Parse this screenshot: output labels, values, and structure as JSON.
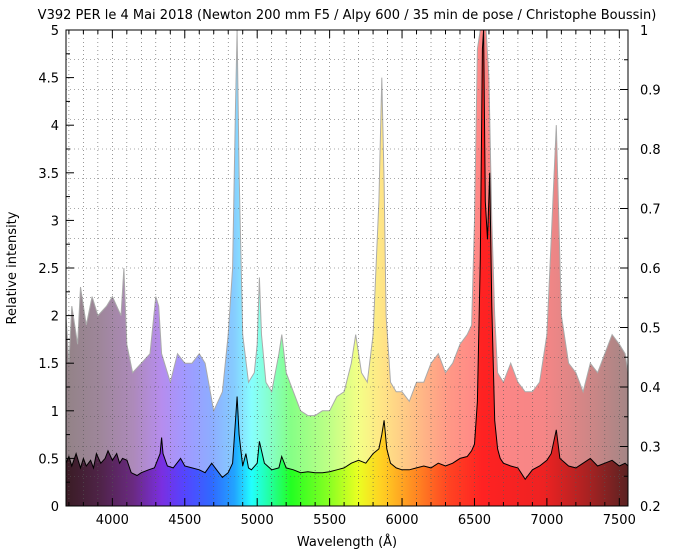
{
  "chart_data": {
    "type": "area",
    "title": "V392 PER le 4 Mai 2018 (Newton 200 mm F5 / Alpy 600 / 35 min de pose / Christophe Boussin)",
    "xlabel": "Wavelength (Å)",
    "ylabel": "Relative intensity",
    "xlim": [
      3680,
      7560
    ],
    "ylim": [
      0,
      5
    ],
    "y2lim": [
      0.2,
      1
    ],
    "grid": true,
    "x_ticks": [
      4000,
      4500,
      5000,
      5500,
      6000,
      6500,
      7000,
      7500
    ],
    "y_ticks": [
      0,
      0.5,
      1,
      1.5,
      2,
      2.5,
      3,
      3.5,
      4,
      4.5,
      5
    ],
    "y2_ticks": [
      0.2,
      0.3,
      0.4,
      0.5,
      0.6,
      0.7,
      0.8,
      0.9,
      1
    ],
    "x_tick_labels": [
      "4000",
      "4500",
      "5000",
      "5500",
      "6000",
      "6500",
      "7000",
      "7500"
    ],
    "y_tick_labels": [
      "0",
      "0.5",
      "1",
      "1.5",
      "2",
      "2.5",
      "3",
      "3.5",
      "4",
      "4.5",
      "5"
    ],
    "y2_tick_labels": [
      "0.2",
      "0.3",
      "0.4",
      "0.5",
      "0.6",
      "0.7",
      "0.8",
      "0.9",
      "1"
    ],
    "series": [
      {
        "role": "envelope",
        "x": [
          3680,
          3700,
          3720,
          3760,
          3780,
          3820,
          3860,
          3900,
          3960,
          4000,
          4060,
          4080,
          4100,
          4140,
          4200,
          4260,
          4300,
          4320,
          4340,
          4360,
          4400,
          4450,
          4500,
          4550,
          4600,
          4640,
          4700,
          4760,
          4800,
          4830,
          4850,
          4861,
          4875,
          4900,
          4940,
          4980,
          5000,
          5015,
          5030,
          5060,
          5100,
          5150,
          5170,
          5200,
          5250,
          5300,
          5350,
          5400,
          5450,
          5500,
          5550,
          5600,
          5650,
          5680,
          5720,
          5760,
          5800,
          5840,
          5860,
          5876,
          5890,
          5920,
          5960,
          6000,
          6050,
          6100,
          6150,
          6200,
          6250,
          6300,
          6350,
          6400,
          6450,
          6480,
          6500,
          6520,
          6540,
          6563,
          6580,
          6600,
          6620,
          6640,
          6660,
          6700,
          6750,
          6800,
          6850,
          6900,
          6950,
          7000,
          7030,
          7065,
          7100,
          7150,
          7200,
          7250,
          7300,
          7350,
          7400,
          7450,
          7500,
          7540,
          7560
        ],
        "values": [
          2.0,
          1.5,
          2.1,
          1.7,
          2.3,
          1.9,
          2.2,
          2.0,
          2.1,
          2.2,
          2.0,
          2.5,
          1.7,
          1.4,
          1.5,
          1.6,
          2.2,
          2.1,
          1.6,
          1.5,
          1.3,
          1.6,
          1.5,
          1.5,
          1.6,
          1.5,
          1.0,
          1.2,
          1.8,
          2.5,
          4.2,
          5.0,
          3.5,
          1.8,
          1.3,
          1.4,
          1.7,
          2.4,
          1.8,
          1.3,
          1.2,
          1.6,
          1.8,
          1.4,
          1.2,
          1.0,
          0.95,
          0.95,
          1.0,
          1.0,
          1.15,
          1.2,
          1.5,
          1.8,
          1.4,
          1.3,
          1.8,
          3.2,
          4.5,
          3.4,
          2.0,
          1.3,
          1.2,
          1.2,
          1.1,
          1.3,
          1.3,
          1.5,
          1.6,
          1.4,
          1.5,
          1.7,
          1.8,
          1.9,
          3.0,
          4.8,
          5.0,
          5.0,
          5.0,
          4.5,
          3.0,
          2.0,
          1.4,
          1.3,
          1.5,
          1.3,
          1.2,
          1.2,
          1.3,
          1.8,
          2.8,
          4.0,
          2.0,
          1.5,
          1.4,
          1.2,
          1.5,
          1.4,
          1.6,
          1.8,
          1.7,
          1.6,
          1.4
        ]
      },
      {
        "role": "spectrum",
        "x": [
          3680,
          3700,
          3720,
          3750,
          3780,
          3800,
          3820,
          3850,
          3870,
          3890,
          3920,
          3950,
          3970,
          4000,
          4030,
          4050,
          4070,
          4101,
          4130,
          4170,
          4200,
          4250,
          4290,
          4330,
          4340,
          4350,
          4380,
          4420,
          4471,
          4500,
          4550,
          4600,
          4640,
          4686,
          4720,
          4760,
          4800,
          4830,
          4850,
          4861,
          4875,
          4900,
          4922,
          4940,
          4960,
          5000,
          5015,
          5050,
          5100,
          5150,
          5169,
          5200,
          5250,
          5300,
          5350,
          5400,
          5450,
          5500,
          5550,
          5600,
          5650,
          5700,
          5750,
          5800,
          5840,
          5860,
          5876,
          5895,
          5920,
          5960,
          6000,
          6050,
          6100,
          6150,
          6200,
          6250,
          6300,
          6350,
          6400,
          6450,
          6480,
          6500,
          6520,
          6540,
          6555,
          6563,
          6575,
          6590,
          6605,
          6620,
          6640,
          6660,
          6678,
          6700,
          6750,
          6800,
          6850,
          6900,
          6950,
          7000,
          7030,
          7065,
          7090,
          7150,
          7200,
          7250,
          7300,
          7350,
          7400,
          7450,
          7500,
          7540,
          7560
        ],
        "values": [
          0.45,
          0.52,
          0.42,
          0.55,
          0.4,
          0.5,
          0.42,
          0.48,
          0.4,
          0.55,
          0.45,
          0.5,
          0.58,
          0.48,
          0.55,
          0.45,
          0.5,
          0.48,
          0.35,
          0.32,
          0.35,
          0.38,
          0.4,
          0.55,
          0.72,
          0.55,
          0.42,
          0.4,
          0.5,
          0.42,
          0.4,
          0.38,
          0.35,
          0.45,
          0.38,
          0.3,
          0.35,
          0.45,
          0.9,
          1.15,
          0.75,
          0.42,
          0.55,
          0.4,
          0.38,
          0.45,
          0.68,
          0.45,
          0.38,
          0.4,
          0.52,
          0.4,
          0.38,
          0.35,
          0.36,
          0.35,
          0.35,
          0.36,
          0.38,
          0.4,
          0.45,
          0.48,
          0.45,
          0.55,
          0.6,
          0.75,
          0.9,
          0.6,
          0.45,
          0.4,
          0.38,
          0.38,
          0.4,
          0.42,
          0.4,
          0.45,
          0.42,
          0.45,
          0.5,
          0.52,
          0.58,
          0.65,
          1.1,
          2.6,
          4.8,
          5.0,
          3.2,
          2.8,
          3.5,
          2.1,
          0.9,
          0.6,
          0.5,
          0.45,
          0.42,
          0.4,
          0.28,
          0.38,
          0.42,
          0.48,
          0.55,
          0.8,
          0.5,
          0.42,
          0.4,
          0.45,
          0.5,
          0.42,
          0.45,
          0.48,
          0.42,
          0.45,
          0.42
        ]
      }
    ]
  }
}
